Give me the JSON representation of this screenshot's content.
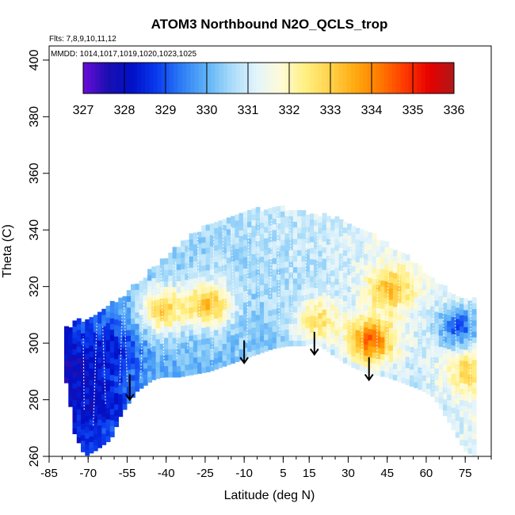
{
  "chart_data": {
    "type": "heatmap",
    "title": "ATOM3 Northbound N2O_QCLS_trop",
    "subtitle_flights": "Flts: 7,8,9,10,11,12",
    "subtitle_dates": "MMDD: 1014,1017,1019,1020,1023,1025",
    "xlabel": "Latitude (deg N)",
    "ylabel": "Theta (C)",
    "xlim": [
      -85,
      85
    ],
    "ylim": [
      260,
      405
    ],
    "x_ticks": [
      -85,
      -70,
      -55,
      -40,
      -25,
      -10,
      5,
      15,
      30,
      45,
      60,
      75
    ],
    "x_tick_labels": [
      "-85",
      "-70",
      "-55",
      "-40",
      "-25",
      "-10",
      "5",
      "15",
      "30",
      "45",
      "60",
      "75"
    ],
    "y_ticks": [
      260,
      280,
      300,
      320,
      340,
      360,
      380,
      400
    ],
    "y_tick_labels": [
      "260",
      "280",
      "300",
      "320",
      "340",
      "360",
      "380",
      "400"
    ],
    "colorbar": {
      "min": 327,
      "max": 336,
      "ticks": [
        "327",
        "328",
        "329",
        "330",
        "331",
        "332",
        "333",
        "334",
        "335",
        "336"
      ],
      "colors": [
        "#6a0dd6",
        "#1a0fb0",
        "#0010c8",
        "#0a3cf0",
        "#2e7ef5",
        "#5fb2f7",
        "#a8dcf9",
        "#e3f4fc",
        "#fffbd8",
        "#ffef80",
        "#ffd24a",
        "#ffaa10",
        "#ff7a00",
        "#ff3a00",
        "#e60000",
        "#b01818"
      ]
    },
    "boundary": {
      "lower_x": [
        -79,
        -76,
        -72,
        -68,
        -62,
        -58,
        -52,
        -46,
        -42,
        -36,
        -30,
        -24,
        -18,
        -12,
        -6,
        0,
        6,
        12,
        16,
        20,
        26,
        32,
        38,
        44,
        50,
        56,
        62,
        68,
        74,
        78
      ],
      "lower_y": [
        286,
        268,
        260,
        262,
        266,
        275,
        283,
        287,
        288,
        288,
        289,
        290,
        292,
        294,
        296,
        298,
        299,
        299,
        300,
        298,
        294,
        291,
        289,
        288,
        286,
        284,
        281,
        272,
        262,
        260
      ],
      "upper_x": [
        -79,
        -74,
        -68,
        -62,
        -56,
        -50,
        -44,
        -38,
        -32,
        -26,
        -20,
        -14,
        -8,
        -2,
        4,
        10,
        16,
        22,
        28,
        34,
        40,
        46,
        52,
        58,
        64,
        70,
        74,
        78
      ],
      "upper_y": [
        305,
        307,
        310,
        313,
        317,
        322,
        327,
        332,
        337,
        340,
        343,
        345,
        346,
        347,
        347,
        346,
        345,
        344,
        342,
        339,
        337,
        333,
        330,
        325,
        320,
        317,
        315,
        315
      ]
    },
    "warm_regions": [
      {
        "x": -25,
        "y": 313,
        "value": 333.5
      },
      {
        "x": -42,
        "y": 311,
        "value": 333.2
      },
      {
        "x": 38,
        "y": 300,
        "value": 334.6
      },
      {
        "x": 45,
        "y": 318,
        "value": 333.4
      },
      {
        "x": 18,
        "y": 307,
        "value": 332.8
      },
      {
        "x": 76,
        "y": 290,
        "value": 333.0
      }
    ],
    "cold_regions": [
      {
        "x": -74,
        "y": 290,
        "value": 327.8
      },
      {
        "x": -62,
        "y": 296,
        "value": 328.2
      },
      {
        "x": -66,
        "y": 278,
        "value": 328.0
      },
      {
        "x": 72,
        "y": 305,
        "value": 329.0
      }
    ],
    "arrows": [
      {
        "x": -54,
        "y_top": 289,
        "y_bottom": 280
      },
      {
        "x": -10,
        "y_top": 301,
        "y_bottom": 293
      },
      {
        "x": 17,
        "y_top": 304,
        "y_bottom": 296
      },
      {
        "x": 38,
        "y_top": 295,
        "y_bottom": 287
      }
    ],
    "grid": false
  }
}
